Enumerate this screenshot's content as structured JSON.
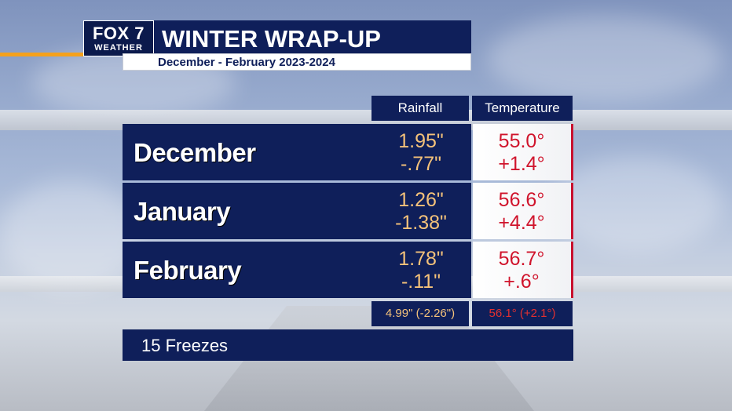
{
  "logo": {
    "main": "FOX 7",
    "sub": "WEATHER"
  },
  "title": "WINTER WRAP-UP",
  "subtitle": "December - February 2023-2024",
  "columns": {
    "rainfall": "Rainfall",
    "temperature": "Temperature"
  },
  "months": [
    {
      "name": "December",
      "rain": "1.95\"",
      "rain_dep": "-.77\"",
      "temp": "55.0°",
      "temp_dep": "+1.4°"
    },
    {
      "name": "January",
      "rain": "1.26\"",
      "rain_dep": "-1.38\"",
      "temp": "56.6°",
      "temp_dep": "+4.4°"
    },
    {
      "name": "February",
      "rain": "1.78\"",
      "rain_dep": "-.11\"",
      "temp": "56.7°",
      "temp_dep": "+.6°"
    }
  ],
  "totals": {
    "rain": "4.99\" (-2.26\")",
    "temp": "56.1° (+2.1°)"
  },
  "freezes": "15 Freezes",
  "colors": {
    "navy": "#0f1f5a",
    "rain": "#f4c27a",
    "temp": "#d0142c",
    "accent": "#f5a11c"
  }
}
